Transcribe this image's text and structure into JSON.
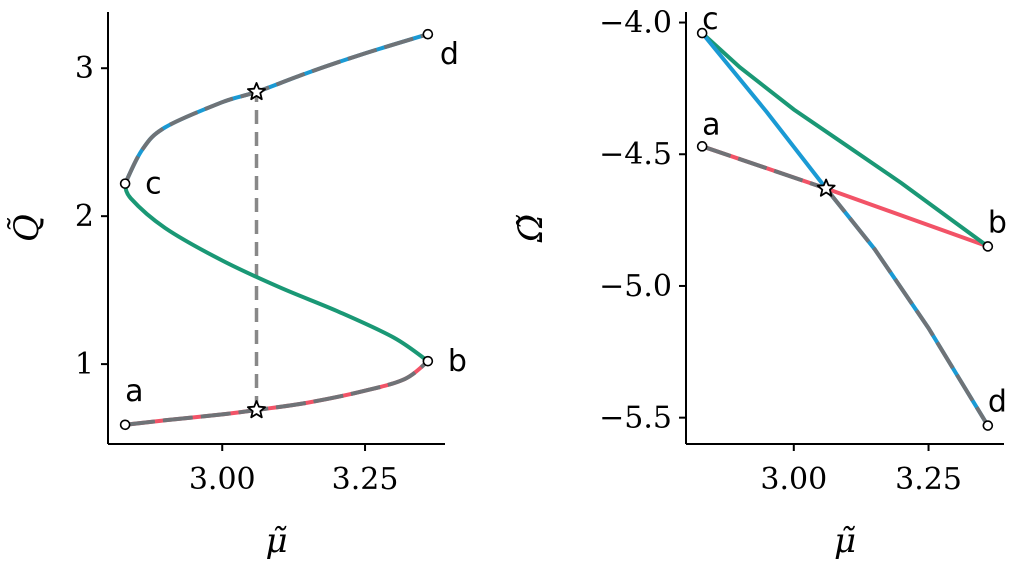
{
  "chart_data": [
    {
      "type": "line",
      "xlabel": "μ̃",
      "ylabel": "Q̃",
      "xlim": [
        2.8,
        3.39
      ],
      "ylim": [
        0.46,
        3.38
      ],
      "xticks": [
        {
          "value": 3.0,
          "label": "3.00"
        },
        {
          "value": 3.25,
          "label": "3.25"
        }
      ],
      "yticks": [
        {
          "value": 1,
          "label": "1"
        },
        {
          "value": 2,
          "label": "2"
        },
        {
          "value": 3,
          "label": "3"
        }
      ],
      "series": [
        {
          "color": "#f25367",
          "dashed_overlay": true,
          "x": [
            2.83,
            2.9,
            3.0,
            3.06,
            3.15,
            3.25,
            3.32,
            3.36
          ],
          "y": [
            0.59,
            0.62,
            0.66,
            0.69,
            0.74,
            0.82,
            0.9,
            1.02
          ]
        },
        {
          "color": "#1a9875",
          "x": [
            3.36,
            3.3,
            3.2,
            3.1,
            3.0,
            2.9,
            2.84,
            2.83
          ],
          "y": [
            1.02,
            1.18,
            1.36,
            1.52,
            1.7,
            1.92,
            2.12,
            2.22
          ]
        },
        {
          "color": "#1a9ad4",
          "dashed_overlay": true,
          "x": [
            2.83,
            2.86,
            2.9,
            3.0,
            3.06,
            3.15,
            3.25,
            3.36
          ],
          "y": [
            2.22,
            2.45,
            2.6,
            2.77,
            2.84,
            2.97,
            3.1,
            3.23
          ]
        }
      ],
      "connector": {
        "x": [
          3.06,
          3.06
        ],
        "y": [
          0.69,
          2.84
        ],
        "color": "#888888"
      },
      "points": [
        {
          "label": "a",
          "x": 2.83,
          "y": 0.59
        },
        {
          "label": "b",
          "x": 3.36,
          "y": 1.02
        },
        {
          "label": "c",
          "x": 2.83,
          "y": 2.22
        },
        {
          "label": "d",
          "x": 3.36,
          "y": 3.23
        }
      ],
      "stars": [
        {
          "x": 3.06,
          "y": 0.69
        },
        {
          "x": 3.06,
          "y": 2.84
        }
      ]
    },
    {
      "type": "line",
      "xlabel": "μ̃",
      "ylabel": "Ω̃",
      "xlim": [
        2.8,
        3.39
      ],
      "ylim": [
        -5.6,
        -3.96
      ],
      "xticks": [
        {
          "value": 3.0,
          "label": "3.00"
        },
        {
          "value": 3.25,
          "label": "3.25"
        }
      ],
      "yticks": [
        {
          "value": -4.0,
          "label": "−4.0"
        },
        {
          "value": -4.5,
          "label": "−4.5"
        },
        {
          "value": -5.0,
          "label": "−5.0"
        },
        {
          "value": -5.5,
          "label": "−5.5"
        }
      ],
      "series": [
        {
          "color": "#f25367",
          "dashed_overlay_to_x": 3.06,
          "x": [
            2.83,
            3.06,
            3.36
          ],
          "y": [
            -4.47,
            -4.63,
            -4.85
          ]
        },
        {
          "color": "#1a9875",
          "x": [
            2.83,
            2.9,
            3.0,
            3.1,
            3.2,
            3.3,
            3.36
          ],
          "y": [
            -4.04,
            -4.17,
            -4.33,
            -4.47,
            -4.61,
            -4.76,
            -4.85
          ]
        },
        {
          "color": "#1a9ad4",
          "dashed_overlay_from_x": 3.06,
          "x": [
            2.83,
            2.95,
            3.06,
            3.15,
            3.25,
            3.36
          ],
          "y": [
            -4.04,
            -4.34,
            -4.63,
            -4.86,
            -5.16,
            -5.53
          ]
        }
      ],
      "points": [
        {
          "label": "a",
          "x": 2.83,
          "y": -4.47
        },
        {
          "label": "b",
          "x": 3.36,
          "y": -4.85
        },
        {
          "label": "c",
          "x": 2.83,
          "y": -4.04
        },
        {
          "label": "d",
          "x": 3.36,
          "y": -5.53
        }
      ],
      "stars": [
        {
          "x": 3.06,
          "y": -4.63
        }
      ]
    }
  ]
}
